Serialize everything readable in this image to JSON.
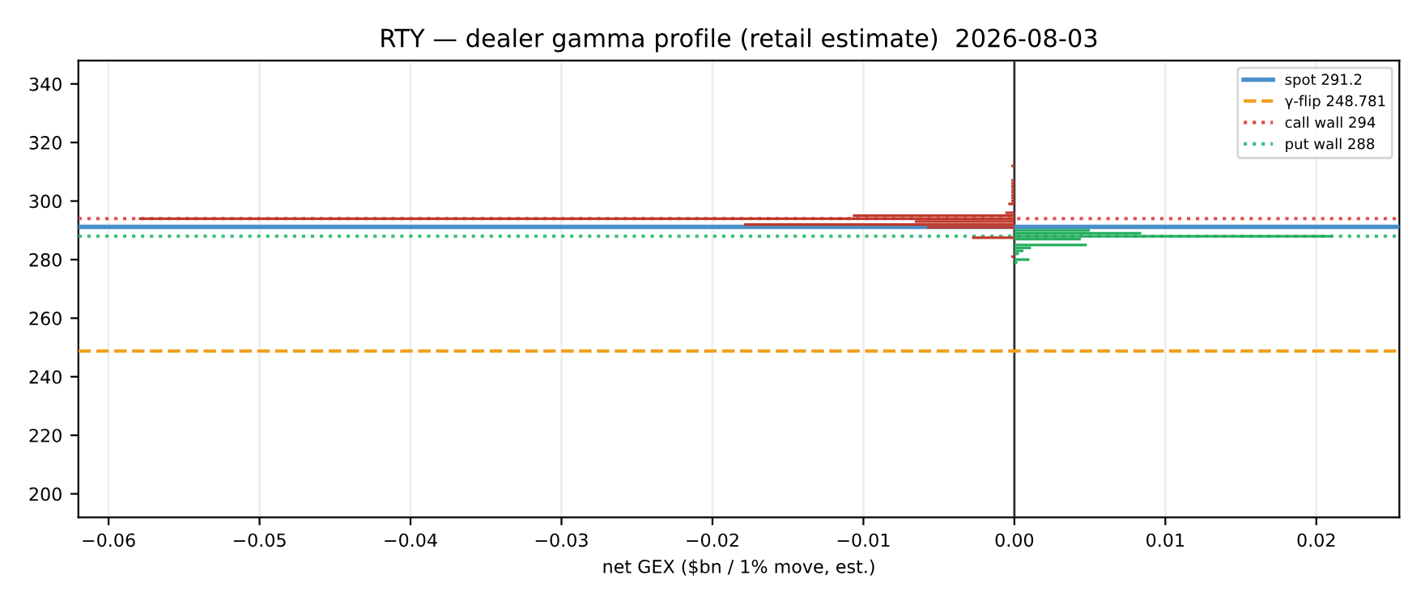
{
  "chart_data": {
    "type": "bar",
    "orientation": "horizontal",
    "title": "RTY — dealer gamma profile (retail estimate)  2026-08-03",
    "xlabel": "net GEX ($bn / 1% move, est.)",
    "x": [
      312,
      307,
      306,
      305,
      304,
      303,
      302,
      301,
      300,
      299,
      296,
      295,
      294,
      293,
      292,
      291,
      290,
      289,
      288,
      287.5,
      287,
      285,
      284,
      283,
      282,
      281,
      280,
      279
    ],
    "values": [
      -0.0002,
      -0.0002,
      -0.0002,
      -0.0002,
      -0.0002,
      -0.0002,
      -0.0002,
      -0.0002,
      -0.0002,
      -0.0004,
      -0.0006,
      -0.0107,
      -0.058,
      -0.0066,
      -0.0179,
      -0.0058,
      0.005,
      0.0084,
      0.0211,
      -0.0028,
      0.0044,
      0.0048,
      0.0011,
      0.0006,
      0.0003,
      -0.0002,
      0.001,
      0.0002
    ],
    "colors": [
      "#c0392b",
      "#c0392b",
      "#c0392b",
      "#c0392b",
      "#c0392b",
      "#c0392b",
      "#c0392b",
      "#c0392b",
      "#c0392b",
      "#c0392b",
      "#c0392b",
      "#c0392b",
      "#c0392b",
      "#c0392b",
      "#c0392b",
      "#c0392b",
      "#27ae60",
      "#27ae60",
      "#27ae60",
      "#c0392b",
      "#27ae60",
      "#27ae60",
      "#27ae60",
      "#27ae60",
      "#27ae60",
      "#c0392b",
      "#27ae60",
      "#27ae60"
    ],
    "xlim": [
      -0.062,
      0.0255
    ],
    "xticks": [
      {
        "value": -0.06,
        "label": "−0.06"
      },
      {
        "value": -0.05,
        "label": "−0.05"
      },
      {
        "value": -0.04,
        "label": "−0.04"
      },
      {
        "value": -0.03,
        "label": "−0.03"
      },
      {
        "value": -0.02,
        "label": "−0.02"
      },
      {
        "value": -0.01,
        "label": "−0.01"
      },
      {
        "value": 0,
        "label": "0.00"
      },
      {
        "value": 0.01,
        "label": "0.01"
      },
      {
        "value": 0.02,
        "label": "0.02"
      }
    ],
    "ylim": [
      192,
      348
    ],
    "yticks": [
      200,
      220,
      240,
      260,
      280,
      300,
      320,
      340
    ],
    "grid": "x",
    "legend": "top right",
    "ref_lines": [
      {
        "axis": "x",
        "value": 0,
        "color": "#333333",
        "line_style": "solid"
      },
      {
        "axis": "y",
        "value": 291.2,
        "label": "spot 291.2",
        "color": "#4a90c8",
        "line_style": "solid"
      },
      {
        "axis": "y",
        "value": 248.781,
        "label": "γ-flip 248.781",
        "color": "#f0a020",
        "line_style": "dashed"
      },
      {
        "axis": "y",
        "value": 294,
        "label": "call wall 294",
        "color": "#e05050",
        "line_style": "dotted"
      },
      {
        "axis": "y",
        "value": 288,
        "label": "put wall 288",
        "color": "#40c080",
        "line_style": "dotted"
      }
    ]
  }
}
